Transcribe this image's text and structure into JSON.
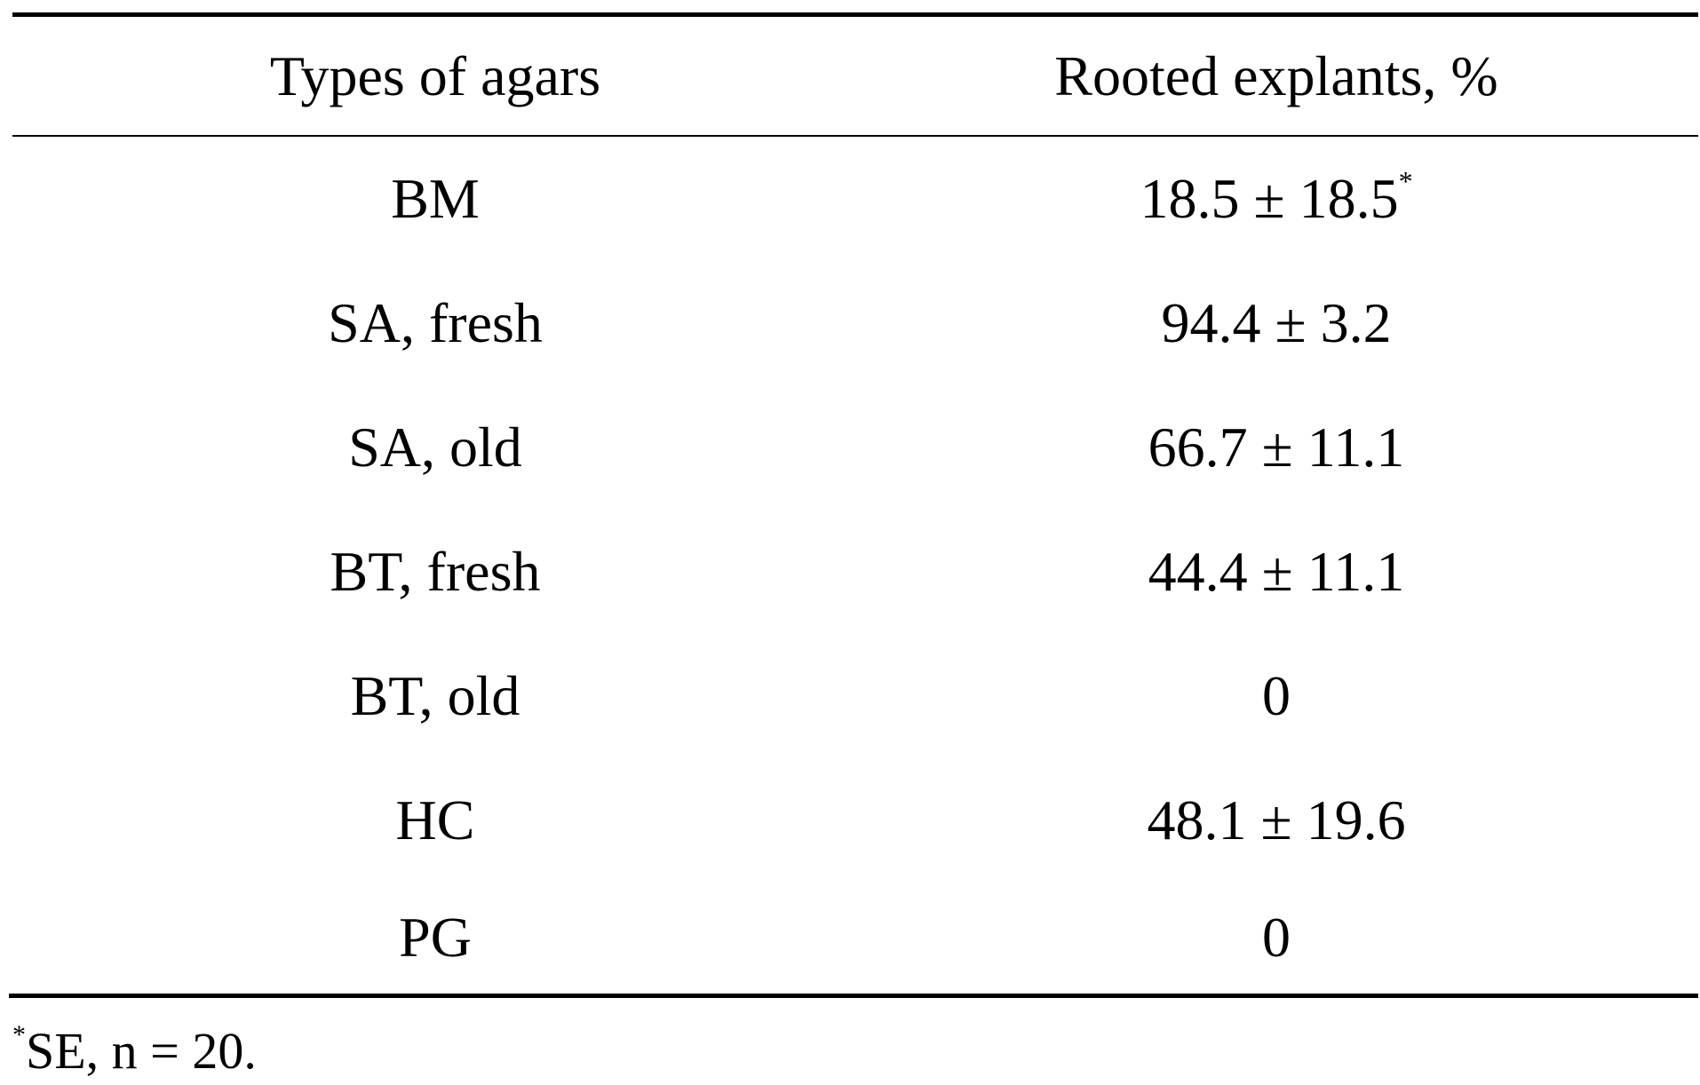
{
  "table": {
    "headers": [
      "Types of agars",
      "Rooted explants, %"
    ],
    "rows": [
      {
        "type": "BM",
        "value": "18.5 ± 18.5",
        "marker": "*"
      },
      {
        "type": "SA, fresh",
        "value": "94.4 ± 3.2",
        "marker": ""
      },
      {
        "type": "SA, old",
        "value": "66.7 ± 11.1",
        "marker": ""
      },
      {
        "type": "BT, fresh",
        "value": "44.4 ± 11.1",
        "marker": ""
      },
      {
        "type": "BT, old",
        "value": "0",
        "marker": ""
      },
      {
        "type": "HC",
        "value": "48.1 ± 19.6",
        "marker": ""
      },
      {
        "type": "PG",
        "value": "0",
        "marker": ""
      }
    ]
  },
  "footnote": {
    "marker": "*",
    "text": "SE, n = 20."
  }
}
